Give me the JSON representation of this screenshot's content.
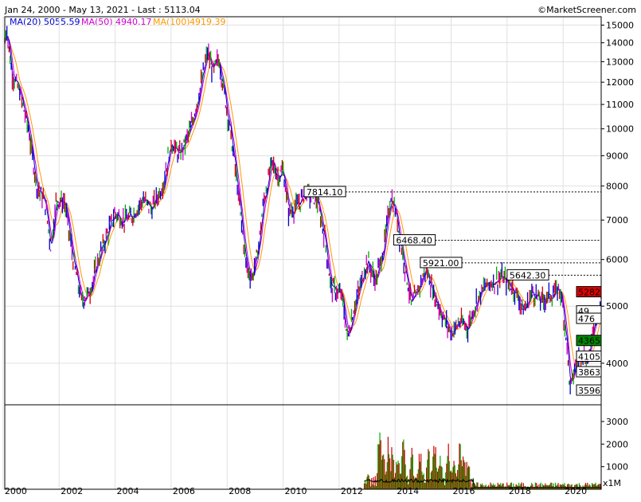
{
  "header": {
    "range_text": "Jan 24, 2000 - May 13, 2021 - Last : 5113.04",
    "brand": "©MarketScreener.com"
  },
  "legend": [
    {
      "label": "MA(20)",
      "value": "5055.59",
      "color": "#0000cc"
    },
    {
      "label": "MA(50)",
      "value": "4940.17",
      "color": "#cc00cc"
    },
    {
      "label": "MA(100)",
      "value": "4919.39",
      "color": "#ff9900"
    }
  ],
  "chart_data": {
    "type": "line",
    "scale": "log",
    "x_range": [
      "2000-01-24",
      "2021-05-13"
    ],
    "ylim": [
      3400,
      15500
    ],
    "yticks": [
      4000,
      5000,
      6000,
      7000,
      8000,
      9000,
      10000,
      11000,
      12000,
      13000,
      14000,
      15000
    ],
    "xticks": [
      2000,
      2002,
      2004,
      2006,
      2008,
      2010,
      2012,
      2014,
      2016,
      2018,
      2020
    ],
    "xtick_labels": [
      "2000",
      "2002",
      "2004",
      "2006",
      "2008",
      "2010",
      "2012",
      "2014",
      "2016",
      "2018",
      "2020"
    ],
    "price_series": [
      [
        2000.06,
        14000
      ],
      [
        2000.12,
        15000
      ],
      [
        2000.3,
        12500
      ],
      [
        2000.6,
        11500
      ],
      [
        2000.9,
        10000
      ],
      [
        2001.2,
        8000
      ],
      [
        2001.5,
        7500
      ],
      [
        2001.7,
        6300
      ],
      [
        2001.9,
        7600
      ],
      [
        2002.2,
        7500
      ],
      [
        2002.5,
        6000
      ],
      [
        2002.8,
        5100
      ],
      [
        2003.1,
        5300
      ],
      [
        2003.4,
        6000
      ],
      [
        2003.7,
        6600
      ],
      [
        2004.0,
        7200
      ],
      [
        2004.3,
        7000
      ],
      [
        2004.6,
        7100
      ],
      [
        2005.0,
        7600
      ],
      [
        2005.3,
        7300
      ],
      [
        2005.7,
        8000
      ],
      [
        2006.0,
        9500
      ],
      [
        2006.3,
        9000
      ],
      [
        2006.7,
        10000
      ],
      [
        2007.0,
        11500
      ],
      [
        2007.3,
        13500
      ],
      [
        2007.5,
        12500
      ],
      [
        2007.7,
        13200
      ],
      [
        2007.9,
        11500
      ],
      [
        2008.1,
        10000
      ],
      [
        2008.3,
        8500
      ],
      [
        2008.5,
        7000
      ],
      [
        2008.7,
        5800
      ],
      [
        2008.9,
        5600
      ],
      [
        2009.1,
        6200
      ],
      [
        2009.3,
        7500
      ],
      [
        2009.6,
        8800
      ],
      [
        2009.8,
        8300
      ],
      [
        2010.0,
        8500
      ],
      [
        2010.2,
        7200
      ],
      [
        2010.5,
        7400
      ],
      [
        2010.8,
        7800
      ],
      [
        2011.0,
        7700
      ],
      [
        2011.2,
        7600
      ],
      [
        2011.5,
        6500
      ],
      [
        2011.7,
        5400
      ],
      [
        2011.9,
        5300
      ],
      [
        2012.1,
        5200
      ],
      [
        2012.3,
        4400
      ],
      [
        2012.5,
        4900
      ],
      [
        2012.8,
        5500
      ],
      [
        2013.0,
        6000
      ],
      [
        2013.3,
        5500
      ],
      [
        2013.6,
        6300
      ],
      [
        2013.85,
        7700
      ],
      [
        2014.0,
        7300
      ],
      [
        2014.3,
        6000
      ],
      [
        2014.6,
        5000
      ],
      [
        2014.8,
        5300
      ],
      [
        2015.1,
        5800
      ],
      [
        2015.4,
        5200
      ],
      [
        2015.7,
        4800
      ],
      [
        2016.0,
        4500
      ],
      [
        2016.3,
        4700
      ],
      [
        2016.6,
        4600
      ],
      [
        2016.9,
        5100
      ],
      [
        2017.2,
        5400
      ],
      [
        2017.5,
        5500
      ],
      [
        2017.8,
        5600
      ],
      [
        2018.0,
        5500
      ],
      [
        2018.3,
        5300
      ],
      [
        2018.6,
        4900
      ],
      [
        2018.9,
        5300
      ],
      [
        2019.2,
        5100
      ],
      [
        2019.5,
        5200
      ],
      [
        2019.9,
        5350
      ],
      [
        2020.1,
        4500
      ],
      [
        2020.25,
        3600
      ],
      [
        2020.45,
        4000
      ],
      [
        2020.7,
        4200
      ],
      [
        2020.85,
        4000
      ],
      [
        2021.0,
        4300
      ],
      [
        2021.1,
        4700
      ],
      [
        2021.36,
        5113
      ]
    ],
    "ma_colors": {
      "ma20": "#0000cc",
      "ma50": "#cc00cc",
      "ma100": "#ff9900"
    },
    "levels": [
      {
        "value": 7814.1,
        "label": "7814.10",
        "from": 2010.75,
        "style": "dashed"
      },
      {
        "value": 6468.4,
        "label": "6468.40",
        "from": 2013.95,
        "style": "dashed"
      },
      {
        "value": 5921.0,
        "label": "5921.00",
        "from": 2014.9,
        "style": "dashed"
      },
      {
        "value": 5642.3,
        "label": "5642.30",
        "from": 2018.0,
        "style": "dashed"
      }
    ],
    "right_labels": [
      {
        "value": 5282,
        "label": "5282",
        "bg": "#dd0000",
        "fg": "#ffffff"
      },
      {
        "value": 4900,
        "label": "49",
        "bg": "#ffffff",
        "fg": "#000000"
      },
      {
        "value": 4760,
        "label": "476",
        "bg": "#ffffff",
        "fg": "#000000"
      },
      {
        "value": 4365.7,
        "label": "4365.7",
        "bg": "#008800",
        "fg": "#ffffff"
      },
      {
        "value": 4105.5,
        "label": "4105.5",
        "bg": "#ffffff",
        "fg": "#000000"
      },
      {
        "value": 3863.2,
        "label": "3863.2",
        "bg": "#ffffff",
        "fg": "#000000"
      },
      {
        "value": 3596.1,
        "label": "3596.10",
        "bg": "#ffffff",
        "fg": "#000000"
      }
    ],
    "volume": {
      "unit_label": "x1M",
      "yticks": [
        1000,
        2000,
        3000
      ],
      "ylim": [
        0,
        3600
      ],
      "start": 2012.9,
      "spikes": [
        [
          2013.45,
          3600
        ],
        [
          2013.55,
          2500
        ],
        [
          2013.75,
          2200
        ],
        [
          2013.9,
          1800
        ],
        [
          2014.1,
          1500
        ],
        [
          2014.3,
          2400
        ],
        [
          2014.6,
          1600
        ],
        [
          2014.9,
          1400
        ],
        [
          2015.2,
          1700
        ],
        [
          2015.4,
          2100
        ],
        [
          2015.6,
          1200
        ],
        [
          2015.9,
          2000
        ],
        [
          2016.1,
          1100
        ],
        [
          2016.3,
          2100
        ],
        [
          2016.45,
          1400
        ],
        [
          2016.6,
          900
        ]
      ],
      "colors": {
        "up": "#00aa00",
        "down": "#cc0000",
        "avg": "#000000"
      }
    }
  }
}
